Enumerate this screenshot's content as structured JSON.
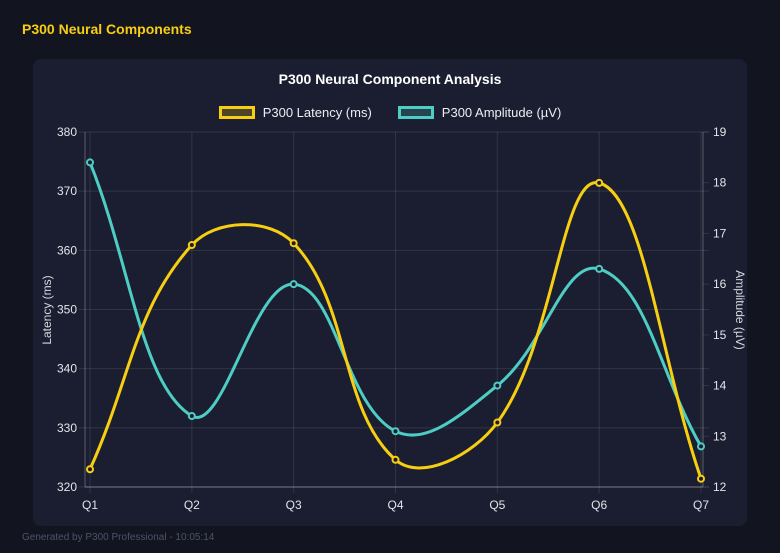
{
  "page": {
    "header": "P300 Neural Components",
    "footer": "Generated by P300 Professional - 10:05:14"
  },
  "colors": {
    "background": "#12141f",
    "panel": "#1b1e30",
    "header_text": "#f7ce12",
    "grid": "rgba(255,255,255,0.10)",
    "axis_border": "rgba(255,255,255,0.35)",
    "tick_text": "#e2e4ea"
  },
  "chart_data": {
    "type": "line",
    "title": "P300 Neural Component Analysis",
    "categories": [
      "Q1",
      "Q2",
      "Q3",
      "Q4",
      "Q5",
      "Q6",
      "Q7"
    ],
    "series": [
      {
        "name": "P300 Latency (ms)",
        "color": "#f7ce12",
        "fill_color": "rgba(247,206,18,0.22)",
        "axis": "left",
        "values": [
          323.0,
          360.9,
          361.2,
          324.6,
          330.9,
          371.4,
          321.4
        ]
      },
      {
        "name": "P300 Amplitude (µV)",
        "color": "#4ecdc4",
        "fill_color": "rgba(78,205,196,0.22)",
        "axis": "right",
        "values": [
          18.4,
          13.4,
          16.0,
          13.1,
          14.0,
          16.3,
          12.8
        ]
      }
    ],
    "left_axis": {
      "label": "Latency (ms)",
      "min": 320,
      "max": 380,
      "step": 10
    },
    "right_axis": {
      "label": "Amplitude (µV)",
      "min": 12,
      "max": 19,
      "step": 1
    },
    "legend_position": "top",
    "grid": true,
    "line_tension": 0.4,
    "point_radius": 3,
    "line_width": 3
  }
}
